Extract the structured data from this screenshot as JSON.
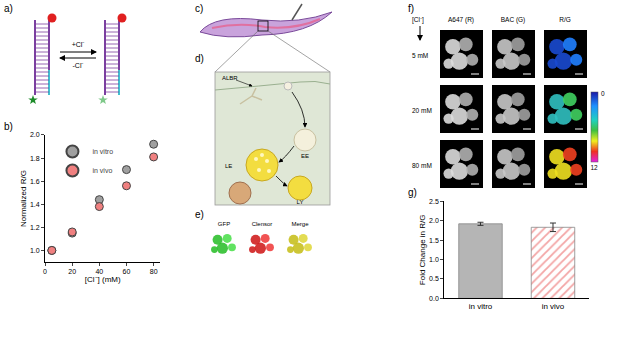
{
  "panel_labels": [
    "a)",
    "b)",
    "c)",
    "d)",
    "e)",
    "f)",
    "g)"
  ],
  "panel_a": {
    "forward": "+Cl⁻",
    "reverse": "-Cl⁻"
  },
  "panel_d": {
    "labels": [
      "ALBR",
      "EE",
      "LE",
      "LY"
    ]
  },
  "panel_e": {
    "images": [
      "GFP",
      "Clensor",
      "Merge"
    ]
  },
  "panel_f": {
    "columns": [
      "A647 (R)",
      "BAC (G)",
      "R/G"
    ],
    "axis_label": "[Cl⁻]",
    "rows": [
      "5 mM",
      "20 mM",
      "80 mM"
    ],
    "colorbar": {
      "range": [
        0,
        12
      ],
      "ticks": [
        0,
        12
      ]
    }
  },
  "chart_data": [
    {
      "type": "scatter",
      "xlabel": "[Cl⁻] (mM)",
      "ylabel": "Normalized R/G",
      "x": [
        5,
        20,
        40,
        60,
        80
      ],
      "series": [
        {
          "name": "in vitro",
          "color": "#a0a0a0",
          "values": [
            1.0,
            1.15,
            1.44,
            1.7,
            1.92
          ]
        },
        {
          "name": "in vivo",
          "color": "#f08080",
          "values": [
            1.0,
            1.16,
            1.38,
            1.56,
            1.81
          ]
        }
      ],
      "xlim": [
        0,
        85
      ],
      "xticks": [
        0,
        20,
        40,
        60,
        80
      ],
      "ylim": [
        0.9,
        2.0
      ],
      "yticks": [
        {
          "value": 1.0,
          "label": "1.0"
        },
        {
          "value": 1.2,
          "label": "1.2"
        },
        {
          "value": 1.4,
          "label": "1.4"
        },
        {
          "value": 1.6,
          "label": "1.6"
        },
        {
          "value": 1.8,
          "label": "1.8"
        },
        {
          "value": 2.0,
          "label": "2.0"
        }
      ],
      "legend": "upper left",
      "marker": "circle"
    },
    {
      "type": "bar",
      "ylabel": "Fold Change in R/G",
      "categories": [
        "in vitro",
        "in vivo"
      ],
      "values": [
        1.92,
        1.83
      ],
      "errors": [
        0.04,
        0.11
      ],
      "colors": [
        "#b5b5b5",
        "#f3a5a5"
      ],
      "ylim": [
        0,
        2.5
      ],
      "yticks": [
        {
          "value": 0,
          "label": "0.0"
        },
        {
          "value": 0.5,
          "label": "0.5"
        },
        {
          "value": 1.0,
          "label": "1.0"
        },
        {
          "value": 1.5,
          "label": "1.5"
        },
        {
          "value": 2.0,
          "label": "2.0"
        },
        {
          "value": 2.5,
          "label": "2.5"
        }
      ]
    }
  ]
}
